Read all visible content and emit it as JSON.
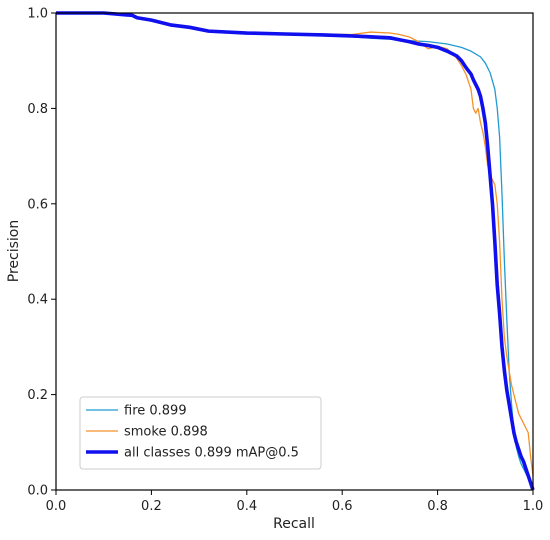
{
  "chart_data": {
    "type": "line",
    "title": "",
    "xlabel": "Recall",
    "ylabel": "Precision",
    "xlim": [
      0.0,
      1.0
    ],
    "ylim": [
      0.0,
      1.0
    ],
    "xticks": [
      "0.0",
      "0.2",
      "0.4",
      "0.6",
      "0.8",
      "1.0"
    ],
    "yticks": [
      "0.0",
      "0.2",
      "0.4",
      "0.6",
      "0.8",
      "1.0"
    ],
    "grid": false,
    "legend_position": "lower-left",
    "series": [
      {
        "name": "fire 0.899",
        "color": "#1f9bd1",
        "emphasis": "thin",
        "x": [
          0.0,
          0.1,
          0.16,
          0.17,
          0.2,
          0.24,
          0.28,
          0.32,
          0.4,
          0.48,
          0.56,
          0.62,
          0.66,
          0.7,
          0.74,
          0.78,
          0.82,
          0.85,
          0.87,
          0.89,
          0.9,
          0.91,
          0.92,
          0.925,
          0.93,
          0.935,
          0.94,
          0.945,
          0.95,
          0.955,
          0.96,
          0.965,
          0.97,
          0.975,
          0.98,
          0.985,
          0.99,
          0.995,
          1.0
        ],
        "y": [
          1.0,
          1.0,
          0.995,
          0.99,
          0.985,
          0.975,
          0.97,
          0.962,
          0.958,
          0.955,
          0.952,
          0.95,
          0.947,
          0.945,
          0.942,
          0.94,
          0.935,
          0.928,
          0.92,
          0.908,
          0.895,
          0.875,
          0.84,
          0.8,
          0.74,
          0.62,
          0.48,
          0.36,
          0.25,
          0.18,
          0.12,
          0.09,
          0.07,
          0.055,
          0.045,
          0.035,
          0.025,
          0.012,
          0.0
        ]
      },
      {
        "name": "smoke 0.898",
        "color": "#f5922b",
        "emphasis": "thin",
        "x": [
          0.0,
          0.1,
          0.16,
          0.17,
          0.2,
          0.24,
          0.28,
          0.32,
          0.4,
          0.48,
          0.56,
          0.62,
          0.66,
          0.7,
          0.72,
          0.74,
          0.76,
          0.78,
          0.8,
          0.82,
          0.84,
          0.85,
          0.86,
          0.87,
          0.875,
          0.88,
          0.885,
          0.89,
          0.895,
          0.9,
          0.905,
          0.91,
          0.915,
          0.92,
          0.925,
          0.93,
          0.935,
          0.94,
          0.945,
          0.95,
          0.955,
          0.96,
          0.965,
          0.97,
          0.975,
          0.98,
          0.985,
          0.99,
          0.995,
          1.0
        ],
        "y": [
          1.0,
          1.0,
          0.995,
          0.99,
          0.985,
          0.975,
          0.97,
          0.962,
          0.958,
          0.957,
          0.956,
          0.955,
          0.96,
          0.958,
          0.955,
          0.95,
          0.94,
          0.925,
          0.93,
          0.925,
          0.905,
          0.89,
          0.87,
          0.84,
          0.8,
          0.79,
          0.8,
          0.77,
          0.75,
          0.72,
          0.68,
          0.66,
          0.65,
          0.64,
          0.6,
          0.52,
          0.4,
          0.32,
          0.28,
          0.25,
          0.22,
          0.2,
          0.18,
          0.16,
          0.15,
          0.14,
          0.13,
          0.12,
          0.07,
          0.03
        ]
      },
      {
        "name": "all classes 0.899 mAP@0.5",
        "color": "#1010ee",
        "emphasis": "thick",
        "x": [
          0.0,
          0.1,
          0.16,
          0.17,
          0.2,
          0.24,
          0.28,
          0.32,
          0.4,
          0.48,
          0.56,
          0.62,
          0.66,
          0.7,
          0.72,
          0.74,
          0.76,
          0.78,
          0.8,
          0.82,
          0.84,
          0.85,
          0.86,
          0.87,
          0.875,
          0.88,
          0.885,
          0.89,
          0.895,
          0.9,
          0.905,
          0.91,
          0.915,
          0.92,
          0.925,
          0.93,
          0.935,
          0.94,
          0.945,
          0.95,
          0.955,
          0.96,
          0.965,
          0.97,
          0.975,
          0.98,
          0.985,
          0.99,
          0.995,
          1.0
        ],
        "y": [
          1.0,
          1.0,
          0.995,
          0.99,
          0.985,
          0.975,
          0.97,
          0.962,
          0.958,
          0.956,
          0.954,
          0.952,
          0.95,
          0.948,
          0.944,
          0.94,
          0.935,
          0.932,
          0.928,
          0.92,
          0.91,
          0.9,
          0.885,
          0.872,
          0.86,
          0.85,
          0.84,
          0.825,
          0.8,
          0.77,
          0.72,
          0.66,
          0.6,
          0.52,
          0.43,
          0.37,
          0.3,
          0.25,
          0.21,
          0.18,
          0.15,
          0.12,
          0.1,
          0.085,
          0.07,
          0.06,
          0.045,
          0.03,
          0.015,
          0.0
        ]
      }
    ]
  }
}
